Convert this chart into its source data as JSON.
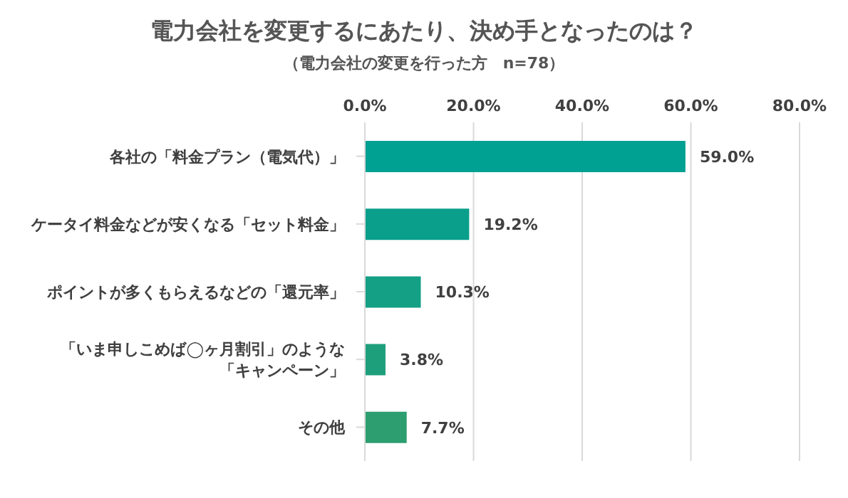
{
  "chart_data": {
    "type": "bar",
    "orientation": "horizontal",
    "title": "電力会社を変更するにあたり、決め手となったのは？",
    "subtitle": "（電力会社の変更を行った方　n=78）",
    "categories": [
      "各社の「料金プラン（電気代）」",
      "ケータイ料金などが安くなる「セット料金」",
      "ポイントが多くもらえるなどの「還元率」",
      "「いま申しこめば◯ヶ月割引」のような「キャンペーン」",
      "その他"
    ],
    "values": [
      59.0,
      19.2,
      10.3,
      3.8,
      7.7
    ],
    "colors": [
      "#00a093",
      "#0a9f8b",
      "#14a085",
      "#1e9f7c",
      "#2c9e70"
    ],
    "value_labels": [
      "59.0%",
      "19.2%",
      "10.3%",
      "3.8%",
      "7.7%"
    ],
    "xlim": [
      0,
      80
    ],
    "xticks": [
      {
        "value": 0,
        "label": "0.0%"
      },
      {
        "value": 20,
        "label": "20.0%"
      },
      {
        "value": 40,
        "label": "40.0%"
      },
      {
        "value": 60,
        "label": "60.0%"
      },
      {
        "value": 80,
        "label": "80.0%"
      }
    ],
    "grid": "x",
    "legend": false
  }
}
